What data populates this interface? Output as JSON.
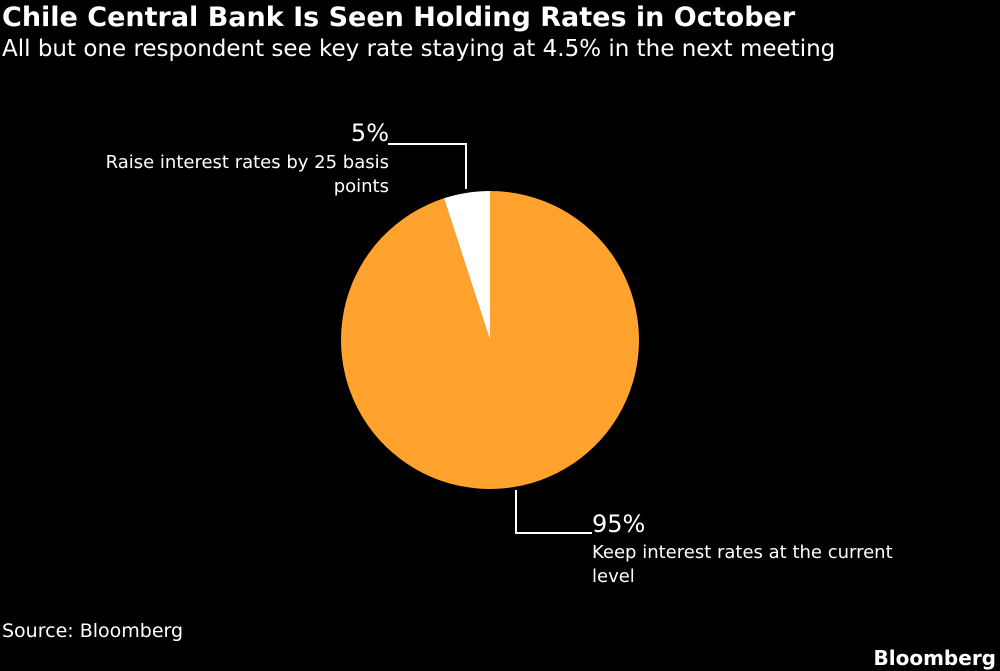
{
  "header": {
    "title": "Chile Central Bank Is Seen Holding Rates in October",
    "subtitle": "All but one respondent see key rate staying at 4.5% in the next meeting"
  },
  "footer": {
    "source": "Source: Bloomberg",
    "brand": "Bloomberg"
  },
  "chart_data": {
    "type": "pie",
    "slices": [
      {
        "category": "Raise interest rates by 25 basis points",
        "label_lines": [
          "Raise interest rates by 25 basis",
          "points"
        ],
        "value": 5,
        "value_label": "5%",
        "color": "#ffffff"
      },
      {
        "category": "Keep interest rates at the current level",
        "label_lines": [
          "Keep interest rates at the current",
          "level"
        ],
        "value": 95,
        "value_label": "95%",
        "color": "#ffa22e"
      }
    ]
  }
}
